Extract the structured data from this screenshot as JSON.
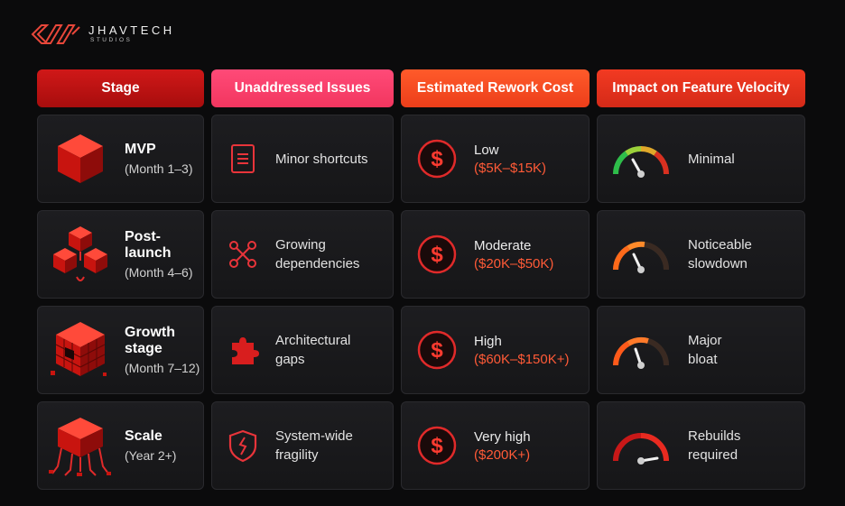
{
  "brand": {
    "name": "JHAVTECH",
    "sub": "STUDIOS"
  },
  "headers": [
    "Stage",
    "Unaddressed Issues",
    "Estimated Rework Cost",
    "Impact on Feature Velocity"
  ],
  "rows": [
    {
      "stage": {
        "name": "MVP",
        "period": "(Month 1–3)",
        "icon": "single-cube-icon"
      },
      "issue": {
        "text": "Minor shortcuts",
        "icon": "document-list-icon"
      },
      "cost": {
        "level": "Low",
        "range": "($5K–$15K)",
        "icon": "dollar-icon"
      },
      "velocity": {
        "text": "Minimal",
        "icon": "gauge-green-icon",
        "level": 0.3
      }
    },
    {
      "stage": {
        "name": "Post-launch",
        "period": "(Month 4–6)",
        "icon": "cube-cluster-icon"
      },
      "issue": {
        "text": "Growing\ndependencies",
        "icon": "dependency-graph-icon"
      },
      "cost": {
        "level": "Moderate",
        "range": "($20K–$50K)",
        "icon": "dollar-icon"
      },
      "velocity": {
        "text": "Noticeable\nslowdown",
        "icon": "gauge-orange-icon",
        "level": 0.35
      }
    },
    {
      "stage": {
        "name": "Growth stage",
        "period": "(Month 7–12)",
        "icon": "crumbling-cube-icon"
      },
      "issue": {
        "text": "Architectural\ngaps",
        "icon": "puzzle-piece-icon"
      },
      "cost": {
        "level": "High",
        "range": "($60K–$150K+)",
        "icon": "dollar-icon"
      },
      "velocity": {
        "text": "Major\nbloat",
        "icon": "gauge-orange-icon",
        "level": 0.4
      }
    },
    {
      "stage": {
        "name": "Scale",
        "period": "(Year 2+)",
        "icon": "broken-structure-icon"
      },
      "issue": {
        "text": "System-wide\nfragility",
        "icon": "cracked-shield-icon"
      },
      "cost": {
        "level": "Very high",
        "range": "($200K+)",
        "icon": "dollar-icon"
      },
      "velocity": {
        "text": "Rebuilds\nrequired",
        "icon": "gauge-red-icon",
        "level": 0.85
      }
    }
  ],
  "colors": {
    "accent_red": "#d01818",
    "accent_pink": "#f2365f",
    "accent_orange": "#ff5a37",
    "background": "#0b0b0c"
  }
}
